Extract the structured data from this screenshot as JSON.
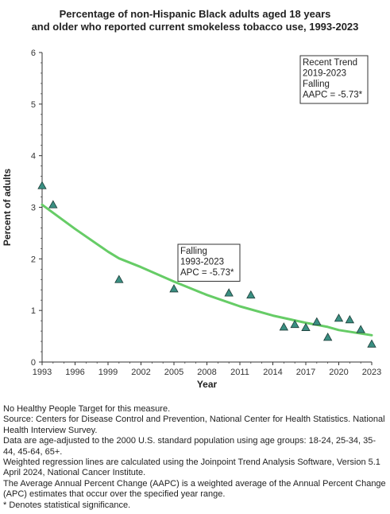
{
  "chart_data": {
    "type": "scatter",
    "title_lines": [
      "Percentage of non-Hispanic Black adults aged 18 years",
      "and older who reported current smokeless tobacco use, 1993-2023"
    ],
    "xlabel": "Year",
    "ylabel": "Percent of adults",
    "xlim": [
      1993,
      2023
    ],
    "ylim": [
      0,
      6
    ],
    "xticks": [
      1993,
      1996,
      1999,
      2002,
      2005,
      2008,
      2011,
      2014,
      2017,
      2020,
      2023
    ],
    "yticks": [
      0,
      1,
      2,
      3,
      4,
      5,
      6
    ],
    "grid": false,
    "series": [
      {
        "kind": "observed",
        "marker": "triangle",
        "color": "#3a8f82",
        "points": [
          {
            "x": 1993,
            "y": 3.42
          },
          {
            "x": 1994,
            "y": 3.05
          },
          {
            "x": 2000,
            "y": 1.6
          },
          {
            "x": 2005,
            "y": 1.42
          },
          {
            "x": 2010,
            "y": 1.34
          },
          {
            "x": 2012,
            "y": 1.3
          },
          {
            "x": 2015,
            "y": 0.68
          },
          {
            "x": 2016,
            "y": 0.73
          },
          {
            "x": 2017,
            "y": 0.67
          },
          {
            "x": 2018,
            "y": 0.78
          },
          {
            "x": 2019,
            "y": 0.48
          },
          {
            "x": 2020,
            "y": 0.85
          },
          {
            "x": 2021,
            "y": 0.82
          },
          {
            "x": 2022,
            "y": 0.63
          },
          {
            "x": 2023,
            "y": 0.35
          }
        ]
      },
      {
        "kind": "trend",
        "color": "#66cc66",
        "points": [
          {
            "x": 1993,
            "y": 3.05
          },
          {
            "x": 1996,
            "y": 2.58
          },
          {
            "x": 1999,
            "y": 2.14
          },
          {
            "x": 2000,
            "y": 2.01
          },
          {
            "x": 2002,
            "y": 1.84
          },
          {
            "x": 2005,
            "y": 1.56
          },
          {
            "x": 2008,
            "y": 1.3
          },
          {
            "x": 2011,
            "y": 1.08
          },
          {
            "x": 2014,
            "y": 0.9
          },
          {
            "x": 2017,
            "y": 0.76
          },
          {
            "x": 2019,
            "y": 0.68
          },
          {
            "x": 2020,
            "y": 0.62
          },
          {
            "x": 2023,
            "y": 0.52
          }
        ]
      }
    ],
    "annotations": [
      {
        "lines": [
          "Falling",
          "1993-2023",
          "APC = -5.73*"
        ]
      },
      {
        "lines": [
          "Recent Trend",
          "2019-2023",
          "Falling",
          "AAPC = -5.73*"
        ]
      }
    ]
  },
  "notes": [
    "No Healthy People Target for this measure.",
    "Source: Centers for Disease Control and Prevention, National Center for Health Statistics. National Health Interview Survey.",
    "Data are age-adjusted to the 2000 U.S. standard population using age groups: 18-24, 25-34, 35-44, 45-64, 65+.",
    "Weighted regression lines are calculated using the Joinpoint Trend Analysis Software, Version 5.1 April 2024, National Cancer Institute.",
    "The Average Annual Percent Change (AAPC) is a weighted average of the Annual Percent Change (APC) estimates that occur over the specified year range.",
    "* Denotes statistical significance."
  ]
}
